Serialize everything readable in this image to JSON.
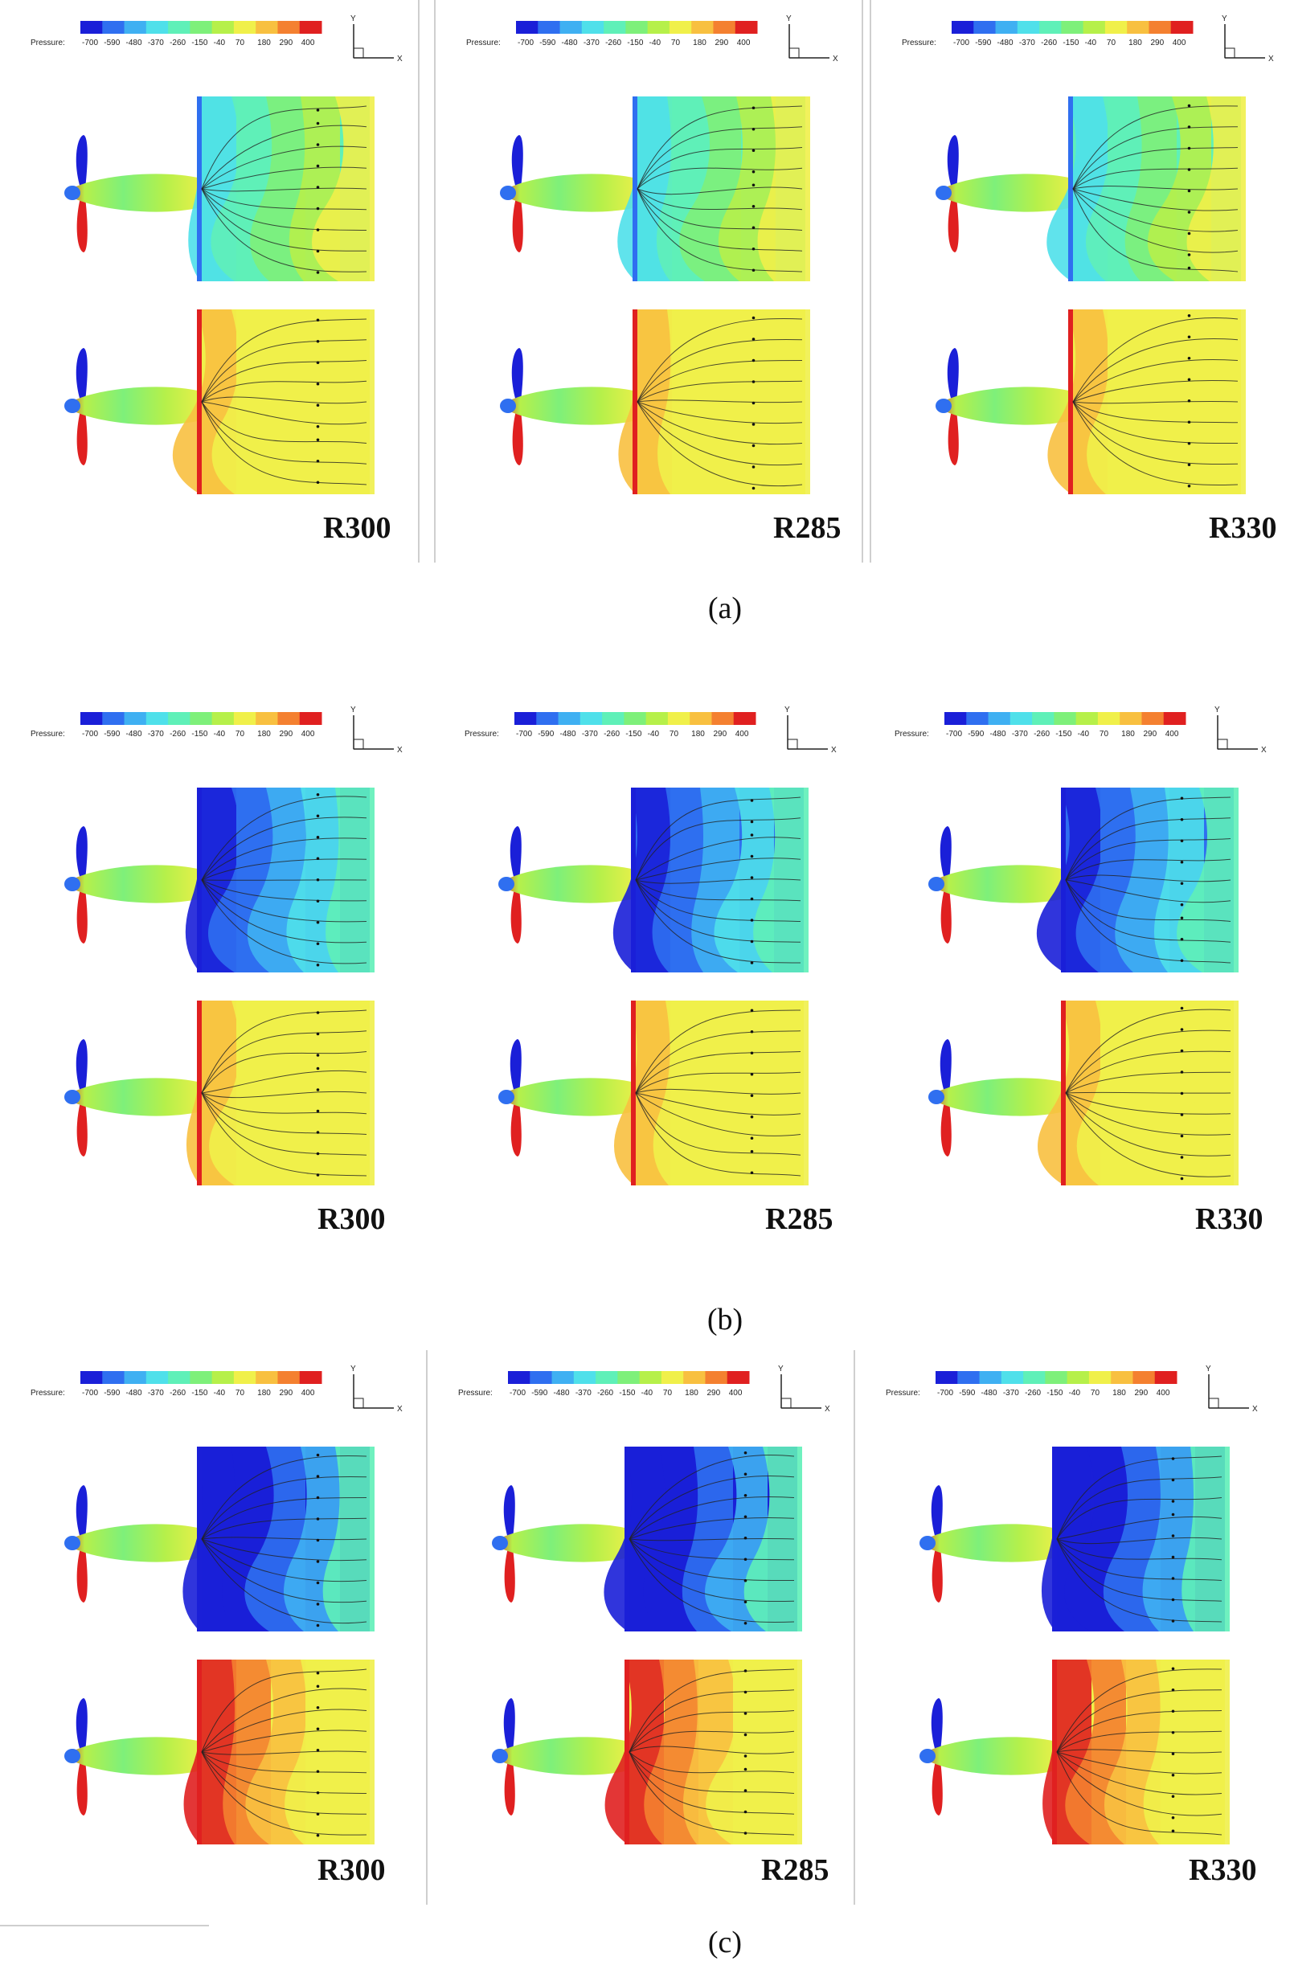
{
  "legend": {
    "title": "Pressure:",
    "ticks": [
      "-700",
      "-590",
      "-480",
      "-370",
      "-260",
      "-150",
      "-40",
      "70",
      "180",
      "290",
      "400"
    ],
    "colors": [
      "#1a1fd8",
      "#2f6ff0",
      "#3fb0f2",
      "#4fe0ea",
      "#5ff0b8",
      "#7ef07a",
      "#b6f04a",
      "#f0f04a",
      "#f8c040",
      "#f48030",
      "#e02020"
    ]
  },
  "axes": {
    "y": "Y",
    "x": "X"
  },
  "rows": [
    {
      "id": "a",
      "caption": "(a)",
      "panels": [
        {
          "label": "R300",
          "top_pressure": "mixed",
          "bottom_pressure": "high"
        },
        {
          "label": "R285",
          "top_pressure": "mixed",
          "bottom_pressure": "high"
        },
        {
          "label": "R330",
          "top_pressure": "mixed",
          "bottom_pressure": "high"
        }
      ]
    },
    {
      "id": "b",
      "caption": "(b)",
      "panels": [
        {
          "label": "R300",
          "top_pressure": "low",
          "bottom_pressure": "high"
        },
        {
          "label": "R285",
          "top_pressure": "low",
          "bottom_pressure": "high"
        },
        {
          "label": "R330",
          "top_pressure": "low",
          "bottom_pressure": "high"
        }
      ]
    },
    {
      "id": "c",
      "caption": "(c)",
      "panels": [
        {
          "label": "R300",
          "top_pressure": "verylow",
          "bottom_pressure": "veryhigh"
        },
        {
          "label": "R285",
          "top_pressure": "verylow",
          "bottom_pressure": "veryhigh"
        },
        {
          "label": "R330",
          "top_pressure": "verylow",
          "bottom_pressure": "veryhigh"
        }
      ]
    }
  ]
}
